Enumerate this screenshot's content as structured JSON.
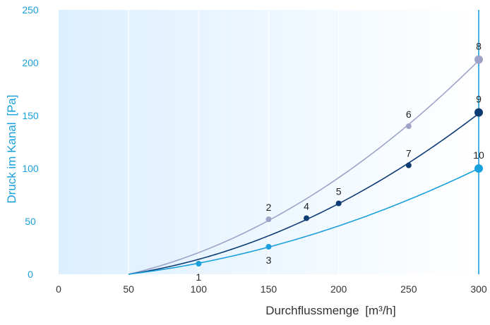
{
  "colors": {
    "accent": "#1aa0dc",
    "axis_text": "#333333",
    "series_gray": "#9ea3c8",
    "series_navy": "#0d3b73",
    "series_blue": "#1aa0dc",
    "bg_left": "#dcefff",
    "bg_right": "#ffffff"
  },
  "chart_data": {
    "type": "line",
    "xlabel": "Durchflussmenge",
    "xunit": "[m³/h]",
    "ylabel": "Druck im Kanal",
    "yunit": "[Pa]",
    "xlim": [
      0,
      300
    ],
    "ylim": [
      0,
      250
    ],
    "xticks": [
      "0",
      "50",
      "100",
      "150",
      "200",
      "250",
      "300"
    ],
    "yticks": [
      "0",
      "50",
      "100",
      "150",
      "200",
      "250"
    ],
    "grid": "vertical",
    "series": [
      {
        "color_key": "series_gray",
        "points": [
          {
            "x": 150,
            "y": 52,
            "label": "2"
          },
          {
            "x": 250,
            "y": 140,
            "label": "6"
          },
          {
            "x": 300,
            "y": 203,
            "label": "8"
          }
        ]
      },
      {
        "color_key": "series_navy",
        "points": [
          {
            "x": 177,
            "y": 53,
            "label": "4"
          },
          {
            "x": 200,
            "y": 67,
            "label": "5"
          },
          {
            "x": 250,
            "y": 103,
            "label": "7"
          },
          {
            "x": 300,
            "y": 153,
            "label": "9"
          }
        ]
      },
      {
        "color_key": "series_blue",
        "points": [
          {
            "x": 100,
            "y": 10,
            "label": "1"
          },
          {
            "x": 150,
            "y": 26,
            "label": "3"
          },
          {
            "x": 300,
            "y": 100,
            "label": "10"
          }
        ]
      }
    ],
    "curve_origin": {
      "x": 50,
      "y": 0
    }
  }
}
